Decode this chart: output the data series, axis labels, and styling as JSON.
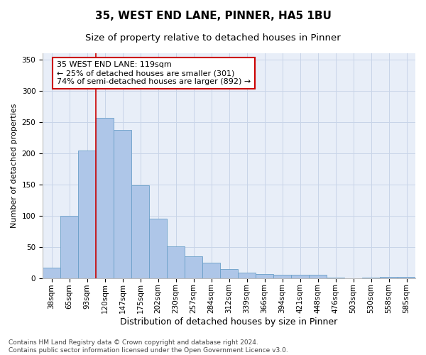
{
  "title": "35, WEST END LANE, PINNER, HA5 1BU",
  "subtitle": "Size of property relative to detached houses in Pinner",
  "xlabel": "Distribution of detached houses by size in Pinner",
  "ylabel": "Number of detached properties",
  "categories": [
    "38sqm",
    "65sqm",
    "93sqm",
    "120sqm",
    "147sqm",
    "175sqm",
    "202sqm",
    "230sqm",
    "257sqm",
    "284sqm",
    "312sqm",
    "339sqm",
    "366sqm",
    "394sqm",
    "421sqm",
    "448sqm",
    "476sqm",
    "503sqm",
    "530sqm",
    "558sqm",
    "585sqm"
  ],
  "values": [
    17,
    100,
    204,
    257,
    237,
    149,
    95,
    51,
    35,
    25,
    14,
    9,
    7,
    5,
    5,
    5,
    1,
    0,
    1,
    2,
    2
  ],
  "bar_color": "#aec6e8",
  "bar_edge_color": "#6a9fc8",
  "grid_color": "#c8d4e8",
  "bg_color": "#e8eef8",
  "vline_color": "#cc0000",
  "vline_x": 2.5,
  "annotation_text": "35 WEST END LANE: 119sqm\n← 25% of detached houses are smaller (301)\n74% of semi-detached houses are larger (892) →",
  "annotation_box_color": "#ffffff",
  "annotation_box_edge": "#cc0000",
  "ylim": [
    0,
    360
  ],
  "yticks": [
    0,
    50,
    100,
    150,
    200,
    250,
    300,
    350
  ],
  "footer": "Contains HM Land Registry data © Crown copyright and database right 2024.\nContains public sector information licensed under the Open Government Licence v3.0.",
  "title_fontsize": 11,
  "subtitle_fontsize": 9.5,
  "xlabel_fontsize": 9,
  "ylabel_fontsize": 8,
  "tick_fontsize": 7.5,
  "annotation_fontsize": 8,
  "footer_fontsize": 6.5
}
